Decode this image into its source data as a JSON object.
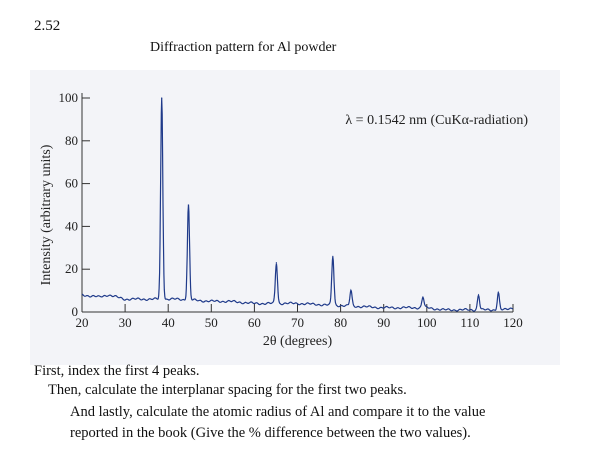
{
  "problem_number": "2.52",
  "chart_data": {
    "type": "line",
    "title": "Diffraction pattern for Al powder",
    "xlabel": "2θ (degrees)",
    "ylabel": "Intensity (arbitrary units)",
    "annotation": "λ = 0.1542 nm (CuKα-radiation)",
    "xlim": [
      20,
      120
    ],
    "ylim": [
      0,
      100
    ],
    "xticks": [
      20,
      30,
      40,
      50,
      60,
      70,
      80,
      90,
      100,
      110,
      120
    ],
    "yticks": [
      0,
      20,
      40,
      60,
      80,
      100
    ],
    "grid": false,
    "line_color": "#1f3a8a",
    "peaks": [
      {
        "x": 38.5,
        "y": 100
      },
      {
        "x": 44.7,
        "y": 50
      },
      {
        "x": 65.1,
        "y": 23
      },
      {
        "x": 78.2,
        "y": 26
      },
      {
        "x": 82.4,
        "y": 10
      },
      {
        "x": 99.1,
        "y": 7
      },
      {
        "x": 112.0,
        "y": 8
      },
      {
        "x": 116.6,
        "y": 9
      }
    ],
    "background": [
      {
        "x": 20,
        "y": 8
      },
      {
        "x": 24,
        "y": 7
      },
      {
        "x": 26,
        "y": 8
      },
      {
        "x": 30,
        "y": 6
      },
      {
        "x": 36,
        "y": 6
      },
      {
        "x": 42,
        "y": 6
      },
      {
        "x": 50,
        "y": 5
      },
      {
        "x": 54,
        "y": 5
      },
      {
        "x": 60,
        "y": 4
      },
      {
        "x": 70,
        "y": 4
      },
      {
        "x": 80,
        "y": 3
      },
      {
        "x": 90,
        "y": 2
      },
      {
        "x": 100,
        "y": 2
      },
      {
        "x": 104,
        "y": 1
      },
      {
        "x": 110,
        "y": 1
      },
      {
        "x": 118,
        "y": 1
      },
      {
        "x": 120,
        "y": 2
      }
    ]
  },
  "questions": [
    "First, index the first 4 peaks.",
    "Then, calculate the interplanar spacing for the first two peaks.",
    "And lastly, calculate the atomic radius of Al and compare it to the value",
    "reported in the book (Give the % difference between the two values)."
  ]
}
